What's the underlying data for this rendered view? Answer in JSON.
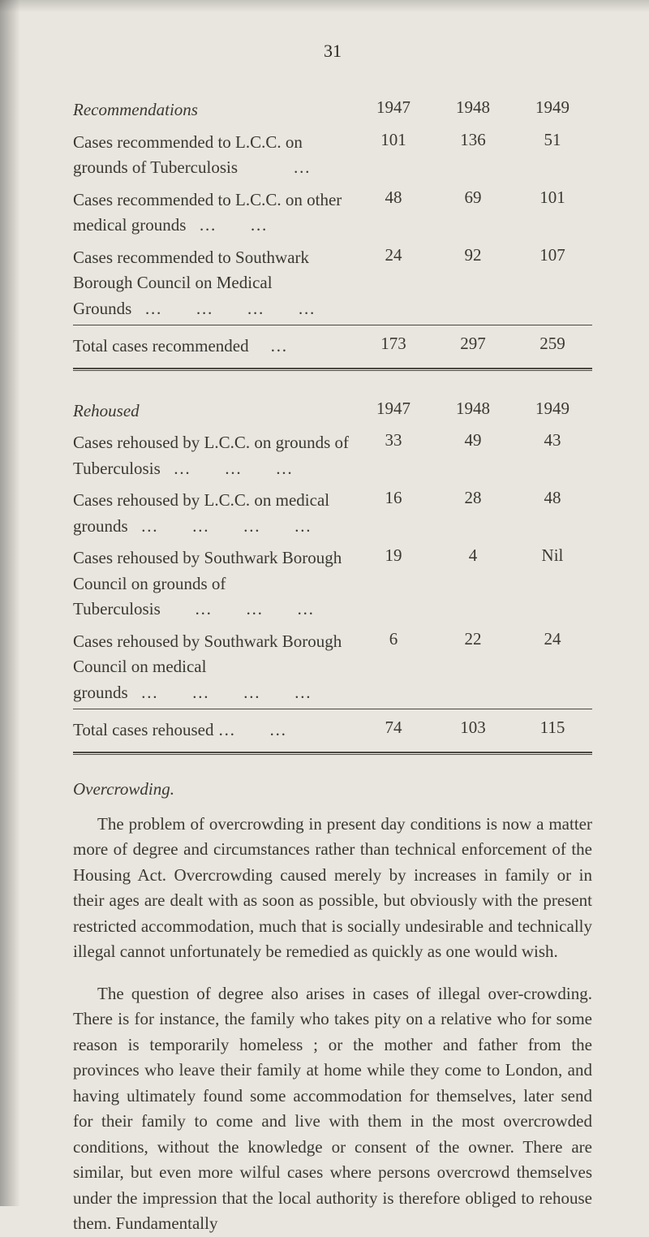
{
  "page_number": "31",
  "table1": {
    "header": {
      "label": "Recommendations",
      "y1947": "1947",
      "y1948": "1948",
      "y1949": "1949"
    },
    "rows": [
      {
        "label": "Cases recommended to L.C.C. on grounds of Tuberculosis             …",
        "y1947": "101",
        "y1948": "136",
        "y1949": "51"
      },
      {
        "label": "Cases recommended to L.C.C. on other medical grounds   …        …",
        "y1947": "48",
        "y1948": "69",
        "y1949": "101"
      },
      {
        "label": "Cases recommended to Southwark Borough Council on Medical Grounds   …        …        …        …",
        "y1947": "24",
        "y1948": "92",
        "y1949": "107"
      }
    ],
    "total": {
      "label": "Total cases recommended     …",
      "y1947": "173",
      "y1948": "297",
      "y1949": "259"
    }
  },
  "table2": {
    "header": {
      "label": "Rehoused",
      "y1947": "1947",
      "y1948": "1948",
      "y1949": "1949"
    },
    "rows": [
      {
        "label": "Cases rehoused by L.C.C. on grounds of Tuberculosis   …        …        …",
        "y1947": "33",
        "y1948": "49",
        "y1949": "43"
      },
      {
        "label": "Cases rehoused by L.C.C. on medical grounds   …        …        …        …",
        "y1947": "16",
        "y1948": "28",
        "y1949": "48"
      },
      {
        "label": "Cases rehoused by Southwark Borough Council on grounds of Tuberculosis        …        …        …",
        "y1947": "19",
        "y1948": "4",
        "y1949": "Nil"
      },
      {
        "label": "Cases rehoused by Southwark Borough Council on medical grounds   …        …        …        …",
        "y1947": "6",
        "y1948": "22",
        "y1949": "24"
      }
    ],
    "total": {
      "label": "Total cases rehoused …        …",
      "y1947": "74",
      "y1948": "103",
      "y1949": "115"
    }
  },
  "body": {
    "heading": "Overcrowding.",
    "para1": "The problem of overcrowding in present day conditions is now a matter more of degree and circumstances rather than technical enforcement of the Housing Act. Overcrowding caused merely by increases in family or in their ages are dealt with as soon as possible, but obviously with the present restricted accommodation, much that is socially undesirable and technically illegal cannot unfortunately be remedied as quickly as one would wish.",
    "para2": "The question of degree also arises in cases of illegal over-crowding. There is for instance, the family who takes pity on a relative who for some reason is temporarily homeless ; or the mother and father from the provinces who leave their family at home while they come to London, and having ultimately found some accommodation for themselves, later send for their family to come and live with them in the most overcrowded conditions, without the knowledge or consent of the owner. There are similar, but even more wilful cases where persons overcrowd themselves under the impression that the local authority is therefore obliged to rehouse them. Fundamentally"
  }
}
